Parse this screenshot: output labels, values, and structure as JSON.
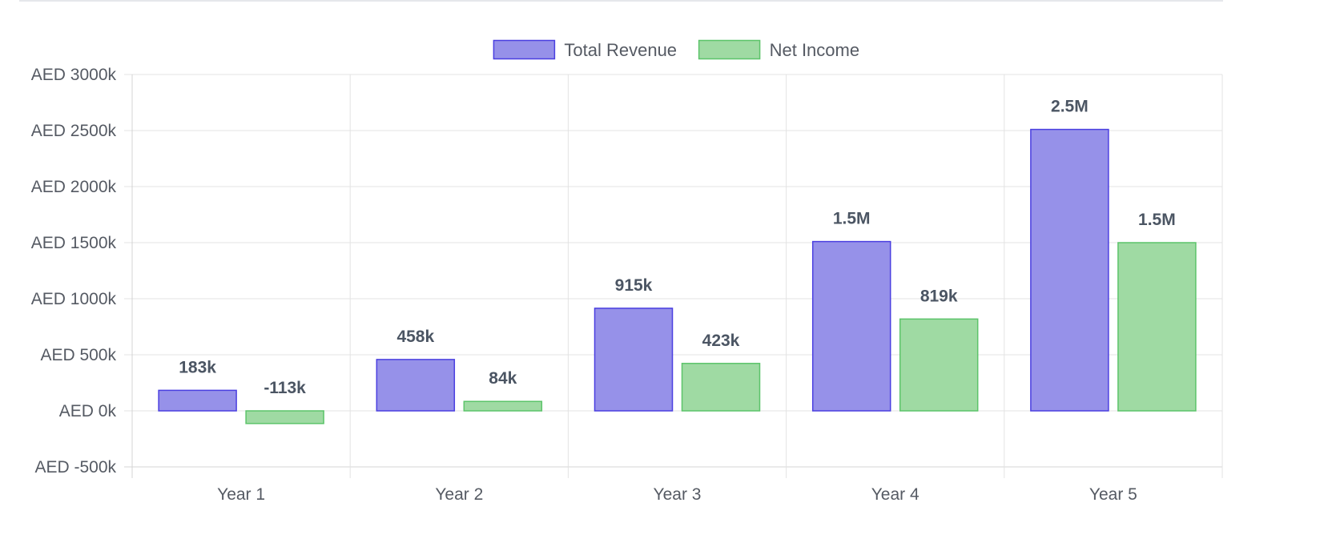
{
  "chart_data": {
    "type": "bar",
    "categories": [
      "Year 1",
      "Year 2",
      "Year 3",
      "Year 4",
      "Year 5"
    ],
    "series": [
      {
        "name": "Total Revenue",
        "values": [
          183000,
          458000,
          915000,
          1510000,
          2510000
        ],
        "labels": [
          "183k",
          "458k",
          "915k",
          "1.5M",
          "2.5M"
        ],
        "fill": "#9691e9",
        "stroke": "#4a3fe0"
      },
      {
        "name": "Net Income",
        "values": [
          -113000,
          84000,
          423000,
          819000,
          1500000
        ],
        "labels": [
          "-113k",
          "84k",
          "423k",
          "819k",
          "1.5M"
        ],
        "fill": "#9fdaa3",
        "stroke": "#5cc46a"
      }
    ],
    "y_ticks": [
      {
        "value": 3000000,
        "label": "AED 3000k"
      },
      {
        "value": 2500000,
        "label": "AED 2500k"
      },
      {
        "value": 2000000,
        "label": "AED 2000k"
      },
      {
        "value": 1500000,
        "label": "AED 1500k"
      },
      {
        "value": 1000000,
        "label": "AED 1000k"
      },
      {
        "value": 500000,
        "label": "AED 500k"
      },
      {
        "value": 0,
        "label": "AED 0k"
      },
      {
        "value": -500000,
        "label": "AED -500k"
      }
    ],
    "ylim": [
      -500000,
      3000000
    ],
    "grid": true,
    "legend_position": "top-center",
    "title": "",
    "xlabel": "",
    "ylabel": ""
  },
  "colors": {
    "grid": "#e3e3e3",
    "axis": "#d4d4d4",
    "tick_text": "#555a63",
    "data_label": "#4b5563"
  }
}
